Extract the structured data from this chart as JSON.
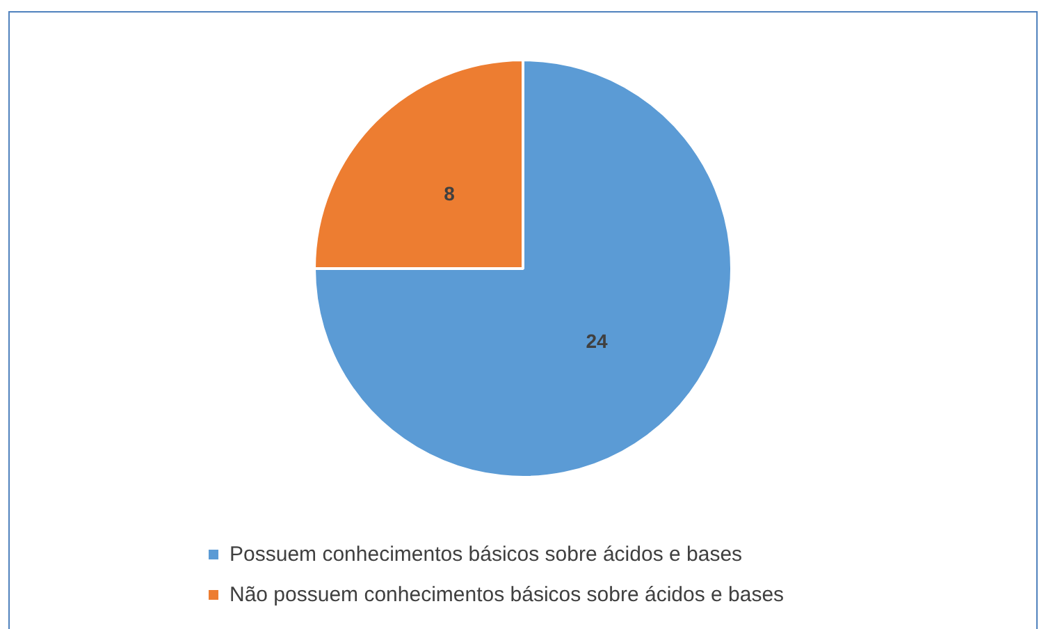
{
  "chart_data": {
    "type": "pie",
    "categories": [
      "Possuem conhecimentos básicos sobre ácidos e bases",
      "Não possuem conhecimentos básicos sobre ácidos e bases"
    ],
    "values": [
      24,
      8
    ],
    "colors": [
      "#5b9bd5",
      "#ed7d31"
    ],
    "data_labels": true,
    "legend": "bottom"
  }
}
